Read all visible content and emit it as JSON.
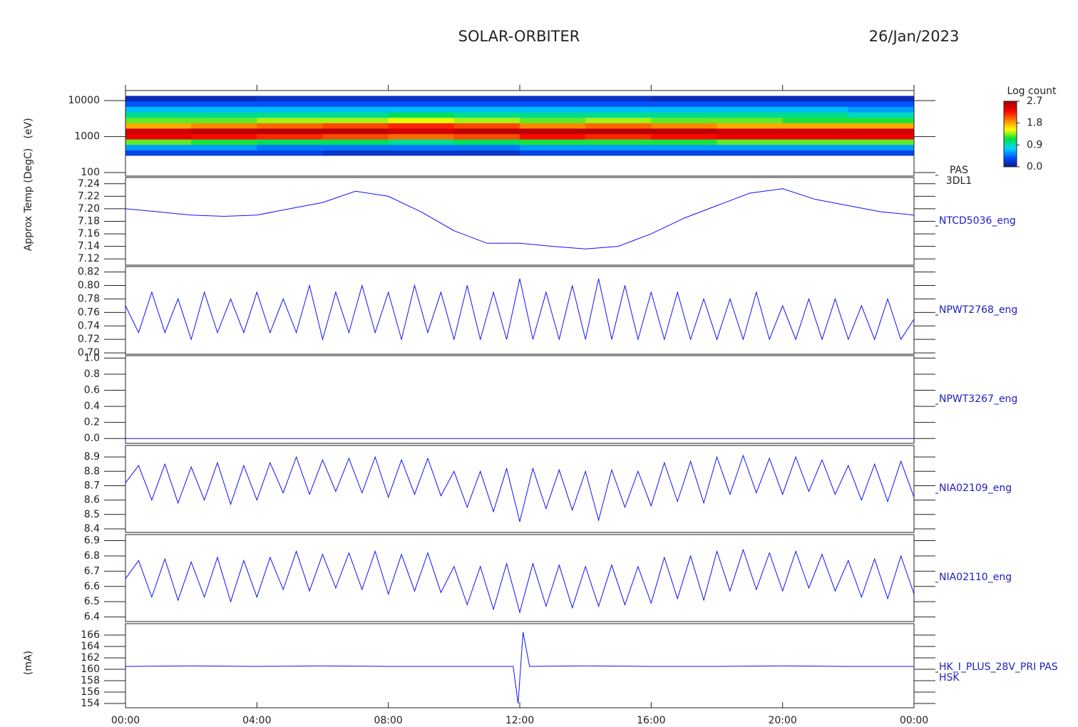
{
  "title": "SOLAR-ORBITER",
  "date": "26/Jan/2023",
  "y_titles": [
    "(eV)",
    "Approx Temp (DegC)",
    "(mA)"
  ],
  "chart_data": [
    {
      "type": "heatmap",
      "labels": [
        "PAS",
        "3DL1"
      ],
      "log": true,
      "xlim": [
        0,
        24
      ],
      "ylim": [
        80,
        19000
      ],
      "yticks": [
        100,
        1000,
        10000
      ],
      "xbins": [
        0,
        2,
        4,
        6,
        8,
        10,
        12,
        14,
        16,
        18,
        20,
        22,
        24
      ],
      "ybins": [
        300,
        420,
        600,
        850,
        1200,
        1700,
        2400,
        3400,
        4800,
        6800,
        9600,
        13500
      ],
      "z": [
        [
          0.3,
          0.6,
          1.3,
          2.4,
          2.5,
          1.8,
          1.3,
          1.0,
          0.7,
          0.4,
          0.15
        ],
        [
          0.3,
          0.6,
          1.2,
          2.3,
          2.6,
          1.9,
          1.3,
          1.0,
          0.7,
          0.4,
          0.15
        ],
        [
          0.3,
          0.5,
          1.1,
          2.2,
          2.6,
          2.0,
          1.4,
          1.0,
          0.7,
          0.4,
          0.2
        ],
        [
          0.2,
          0.5,
          1.1,
          2.1,
          2.6,
          2.1,
          1.4,
          1.0,
          0.7,
          0.4,
          0.2
        ],
        [
          0.2,
          0.5,
          1.0,
          2.0,
          2.5,
          2.2,
          1.5,
          1.1,
          0.7,
          0.4,
          0.2
        ],
        [
          0.2,
          0.5,
          1.1,
          2.1,
          2.6,
          2.1,
          1.4,
          1.0,
          0.7,
          0.4,
          0.2
        ],
        [
          0.3,
          0.6,
          1.2,
          2.3,
          2.6,
          1.9,
          1.3,
          1.0,
          0.7,
          0.4,
          0.2
        ],
        [
          0.3,
          0.6,
          1.2,
          2.2,
          2.6,
          2.0,
          1.4,
          1.0,
          0.7,
          0.4,
          0.2
        ],
        [
          0.3,
          0.6,
          1.2,
          2.3,
          2.6,
          1.9,
          1.3,
          1.0,
          0.7,
          0.4,
          0.15
        ],
        [
          0.3,
          0.6,
          1.3,
          2.4,
          2.5,
          1.8,
          1.3,
          1.0,
          0.7,
          0.4,
          0.15
        ],
        [
          0.3,
          0.6,
          1.3,
          2.4,
          2.5,
          1.8,
          1.2,
          1.0,
          0.7,
          0.4,
          0.15
        ],
        [
          0.3,
          0.6,
          1.3,
          2.4,
          2.5,
          1.8,
          1.2,
          0.9,
          0.6,
          0.4,
          0.15
        ]
      ],
      "colorbar_title": "Log count",
      "zlim": [
        0,
        2.7
      ],
      "zticks": [
        {
          "value": 0,
          "label": "0.0"
        },
        0.9,
        1.8,
        2.7
      ],
      "colorscale": [
        "#14148c",
        "#0050ff",
        "#00d8ff",
        "#00e040",
        "#ffff00",
        "#ff8000",
        "#ff0000",
        "#a00000"
      ]
    },
    {
      "type": "line",
      "xlim": [
        0,
        24
      ],
      "ylim": [
        7.11,
        7.25
      ],
      "yticks": [
        7.12,
        7.14,
        7.16,
        7.18,
        {
          "value": 7.2,
          "label": "7.20"
        },
        7.22,
        7.24
      ],
      "x": [
        0,
        1,
        2,
        3,
        4,
        5,
        6,
        7,
        8,
        9,
        10,
        11,
        12,
        13,
        14,
        15,
        16,
        17,
        18,
        19,
        20,
        21,
        22,
        23,
        24
      ],
      "series": [
        {
          "name": "NTCD5036_eng",
          "color": "#1010ff",
          "values": [
            7.2,
            7.195,
            7.19,
            7.188,
            7.19,
            7.2,
            7.21,
            7.228,
            7.22,
            7.195,
            7.165,
            7.145,
            7.145,
            7.14,
            7.136,
            7.14,
            7.16,
            7.185,
            7.205,
            7.225,
            7.232,
            7.215,
            7.205,
            7.195,
            7.19
          ]
        }
      ]
    },
    {
      "type": "line",
      "xlim": [
        0,
        24
      ],
      "ylim": [
        0.698,
        0.828
      ],
      "yticks": [
        {
          "value": 0.7,
          "label": "0.70"
        },
        0.72,
        0.74,
        0.76,
        0.78,
        {
          "value": 0.8,
          "label": "0.80"
        },
        0.82
      ],
      "x": [
        0,
        0.4,
        0.8,
        1.2,
        1.6,
        2,
        2.4,
        2.8,
        3.2,
        3.6,
        4,
        4.4,
        4.8,
        5.2,
        5.6,
        6,
        6.4,
        6.8,
        7.2,
        7.6,
        8,
        8.4,
        8.8,
        9.2,
        9.6,
        10,
        10.4,
        10.8,
        11.2,
        11.6,
        12,
        12.4,
        12.8,
        13.2,
        13.6,
        14,
        14.4,
        14.8,
        15.2,
        15.6,
        16,
        16.4,
        16.8,
        17.2,
        17.6,
        18,
        18.4,
        18.8,
        19.2,
        19.6,
        20,
        20.4,
        20.8,
        21.2,
        21.6,
        22,
        22.4,
        22.8,
        23.2,
        23.6,
        24
      ],
      "series": [
        {
          "name": "NPWT2768_eng",
          "color": "#1010ff",
          "values": [
            0.77,
            0.73,
            0.79,
            0.73,
            0.78,
            0.72,
            0.79,
            0.73,
            0.78,
            0.73,
            0.79,
            0.73,
            0.78,
            0.73,
            0.8,
            0.72,
            0.79,
            0.73,
            0.8,
            0.73,
            0.79,
            0.72,
            0.8,
            0.73,
            0.79,
            0.72,
            0.8,
            0.72,
            0.79,
            0.72,
            0.81,
            0.72,
            0.79,
            0.72,
            0.8,
            0.72,
            0.81,
            0.72,
            0.8,
            0.72,
            0.79,
            0.72,
            0.79,
            0.72,
            0.78,
            0.72,
            0.78,
            0.72,
            0.79,
            0.72,
            0.77,
            0.72,
            0.78,
            0.72,
            0.78,
            0.72,
            0.77,
            0.72,
            0.78,
            0.72,
            0.75
          ]
        }
      ]
    },
    {
      "type": "line",
      "xlim": [
        0,
        24
      ],
      "ylim": [
        -0.06,
        1.03
      ],
      "yticks": [
        {
          "value": 0,
          "label": "0.0"
        },
        0.2,
        0.4,
        0.6,
        0.8,
        {
          "value": 1,
          "label": "1.0"
        }
      ],
      "x": [
        0,
        24
      ],
      "series": [
        {
          "name": "NPWT3267_eng",
          "color": "#1010ff",
          "values": [
            0,
            0
          ]
        }
      ]
    },
    {
      "type": "line",
      "xlim": [
        0,
        24
      ],
      "ylim": [
        8.375,
        8.98
      ],
      "yticks": [
        8.4,
        8.5,
        8.6,
        8.7,
        8.8,
        8.9
      ],
      "x": [
        0,
        0.4,
        0.8,
        1.2,
        1.6,
        2,
        2.4,
        2.8,
        3.2,
        3.6,
        4,
        4.4,
        4.8,
        5.2,
        5.6,
        6,
        6.4,
        6.8,
        7.2,
        7.6,
        8,
        8.4,
        8.8,
        9.2,
        9.6,
        10,
        10.4,
        10.8,
        11.2,
        11.6,
        12,
        12.4,
        12.8,
        13.2,
        13.6,
        14,
        14.4,
        14.8,
        15.2,
        15.6,
        16,
        16.4,
        16.8,
        17.2,
        17.6,
        18,
        18.4,
        18.8,
        19.2,
        19.6,
        20,
        20.4,
        20.8,
        21.2,
        21.6,
        22,
        22.4,
        22.8,
        23.2,
        23.6,
        24
      ],
      "series": [
        {
          "name": "NIA02109_eng",
          "color": "#1010ff",
          "values": [
            8.72,
            8.84,
            8.6,
            8.85,
            8.58,
            8.83,
            8.6,
            8.86,
            8.57,
            8.84,
            8.6,
            8.86,
            8.65,
            8.9,
            8.64,
            8.88,
            8.66,
            8.89,
            8.65,
            8.9,
            8.62,
            8.88,
            8.64,
            8.89,
            8.63,
            8.8,
            8.55,
            8.8,
            8.52,
            8.82,
            8.45,
            8.82,
            8.54,
            8.81,
            8.53,
            8.8,
            8.46,
            8.81,
            8.55,
            8.8,
            8.56,
            8.86,
            8.59,
            8.87,
            8.58,
            8.9,
            8.64,
            8.91,
            8.65,
            8.89,
            8.64,
            8.9,
            8.66,
            8.88,
            8.64,
            8.84,
            8.6,
            8.85,
            8.59,
            8.87,
            8.62
          ]
        }
      ]
    },
    {
      "type": "line",
      "xlim": [
        0,
        24
      ],
      "ylim": [
        6.37,
        6.94
      ],
      "yticks": [
        6.4,
        6.5,
        6.6,
        6.7,
        6.8,
        6.9
      ],
      "x": [
        0,
        0.4,
        0.8,
        1.2,
        1.6,
        2,
        2.4,
        2.8,
        3.2,
        3.6,
        4,
        4.4,
        4.8,
        5.2,
        5.6,
        6,
        6.4,
        6.8,
        7.2,
        7.6,
        8,
        8.4,
        8.8,
        9.2,
        9.6,
        10,
        10.4,
        10.8,
        11.2,
        11.6,
        12,
        12.4,
        12.8,
        13.2,
        13.6,
        14,
        14.4,
        14.8,
        15.2,
        15.6,
        16,
        16.4,
        16.8,
        17.2,
        17.6,
        18,
        18.4,
        18.8,
        19.2,
        19.6,
        20,
        20.4,
        20.8,
        21.2,
        21.6,
        22,
        22.4,
        22.8,
        23.2,
        23.6,
        24
      ],
      "series": [
        {
          "name": "NIA02110_eng",
          "color": "#1010ff",
          "values": [
            6.65,
            6.77,
            6.53,
            6.78,
            6.51,
            6.76,
            6.53,
            6.79,
            6.5,
            6.77,
            6.53,
            6.79,
            6.58,
            6.83,
            6.57,
            6.81,
            6.59,
            6.82,
            6.58,
            6.83,
            6.55,
            6.81,
            6.57,
            6.82,
            6.56,
            6.73,
            6.48,
            6.73,
            6.45,
            6.75,
            6.43,
            6.75,
            6.47,
            6.74,
            6.46,
            6.73,
            6.47,
            6.74,
            6.48,
            6.73,
            6.49,
            6.79,
            6.52,
            6.8,
            6.51,
            6.83,
            6.57,
            6.84,
            6.58,
            6.82,
            6.57,
            6.83,
            6.59,
            6.81,
            6.57,
            6.77,
            6.53,
            6.78,
            6.52,
            6.8,
            6.55
          ]
        }
      ]
    },
    {
      "type": "line",
      "xlim": [
        0,
        24
      ],
      "ylim": [
        153.25,
        168
      ],
      "yticks": [
        154,
        156,
        158,
        160,
        162,
        164,
        166
      ],
      "x": [
        0,
        2,
        4,
        6,
        8,
        10,
        11.8,
        11.95,
        12.1,
        12.3,
        14,
        16,
        18,
        20,
        22,
        24
      ],
      "series": [
        {
          "name": "HK_I_PLUS_28V_PRI PAS",
          "sublabel": "HSK",
          "color": "#1010ff",
          "values": [
            160.5,
            160.6,
            160.5,
            160.6,
            160.5,
            160.5,
            160.5,
            154,
            166.5,
            160.5,
            160.6,
            160.5,
            160.5,
            160.6,
            160.5,
            160.5
          ]
        }
      ],
      "xticks": [
        {
          "value": 0,
          "label": "00:00"
        },
        {
          "value": 4,
          "label": "04:00"
        },
        {
          "value": 8,
          "label": "08:00"
        },
        {
          "value": 12,
          "label": "12:00"
        },
        {
          "value": 16,
          "label": "16:00"
        },
        {
          "value": 20,
          "label": "20:00"
        },
        {
          "value": 24,
          "label": "00:00"
        }
      ]
    }
  ]
}
